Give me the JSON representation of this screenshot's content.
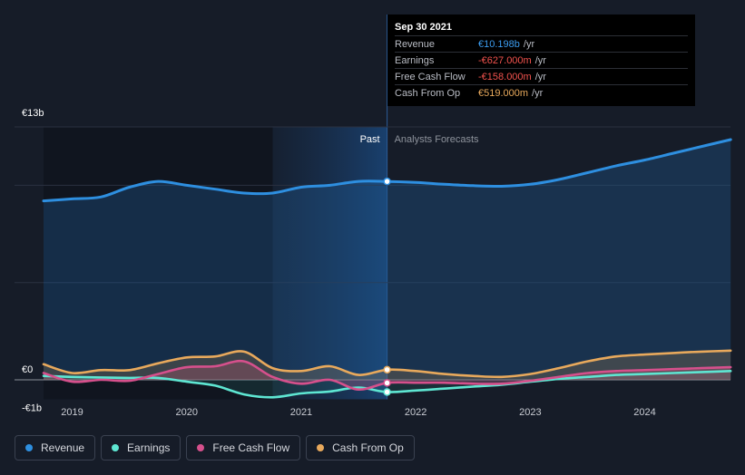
{
  "chart_data": {
    "type": "area",
    "title": "",
    "xlabel": "",
    "ylabel": "",
    "y_axis_labels": [
      "€13b",
      "€0",
      "-€1b"
    ],
    "ylim": [
      -1,
      13
    ],
    "xlim": [
      2018.75,
      2024.75
    ],
    "x_ticks": [
      2019,
      2020,
      2021,
      2022,
      2023,
      2024
    ],
    "x_tick_labels": [
      "2019",
      "2020",
      "2021",
      "2022",
      "2023",
      "2024"
    ],
    "grid": true,
    "section_labels": {
      "past": "Past",
      "forecast": "Analysts Forecasts"
    },
    "past_region_start": 2020.75,
    "divider_x": 2021.75,
    "series": [
      {
        "name": "Revenue",
        "color": "#2e8fe0",
        "x": [
          2018.75,
          2019.0,
          2019.25,
          2019.5,
          2019.75,
          2020.0,
          2020.25,
          2020.5,
          2020.75,
          2021.0,
          2021.25,
          2021.5,
          2021.75,
          2022.0,
          2022.25,
          2022.5,
          2022.75,
          2023.0,
          2023.25,
          2023.5,
          2023.75,
          2024.0,
          2024.25,
          2024.5,
          2024.75
        ],
        "y": [
          9.2,
          9.3,
          9.4,
          9.9,
          10.2,
          10.0,
          9.8,
          9.6,
          9.6,
          9.9,
          10.0,
          10.2,
          10.198,
          10.15,
          10.05,
          9.98,
          9.95,
          10.05,
          10.3,
          10.65,
          11.0,
          11.3,
          11.65,
          12.0,
          12.35
        ]
      },
      {
        "name": "Earnings",
        "color": "#5ee6d2",
        "x": [
          2018.75,
          2019.0,
          2019.25,
          2019.5,
          2019.75,
          2020.0,
          2020.25,
          2020.5,
          2020.75,
          2021.0,
          2021.25,
          2021.5,
          2021.75,
          2022.0,
          2022.25,
          2022.5,
          2022.75,
          2023.0,
          2023.25,
          2023.5,
          2023.75,
          2024.0,
          2024.25,
          2024.5,
          2024.75
        ],
        "y": [
          0.2,
          0.15,
          0.12,
          0.1,
          0.1,
          -0.1,
          -0.3,
          -0.75,
          -0.9,
          -0.7,
          -0.6,
          -0.4,
          -0.627,
          -0.55,
          -0.45,
          -0.35,
          -0.25,
          -0.1,
          0.05,
          0.15,
          0.25,
          0.3,
          0.35,
          0.4,
          0.45
        ]
      },
      {
        "name": "Free Cash Flow",
        "color": "#d6508c",
        "x": [
          2018.75,
          2019.0,
          2019.25,
          2019.5,
          2019.75,
          2020.0,
          2020.25,
          2020.5,
          2020.75,
          2021.0,
          2021.25,
          2021.5,
          2021.75,
          2022.0,
          2022.25,
          2022.5,
          2022.75,
          2023.0,
          2023.25,
          2023.5,
          2023.75,
          2024.0,
          2024.25,
          2024.5,
          2024.75
        ],
        "y": [
          0.35,
          -0.1,
          0.0,
          -0.05,
          0.3,
          0.65,
          0.7,
          0.95,
          0.15,
          -0.2,
          0.0,
          -0.5,
          -0.158,
          -0.15,
          -0.15,
          -0.2,
          -0.2,
          -0.05,
          0.15,
          0.35,
          0.45,
          0.5,
          0.55,
          0.6,
          0.65
        ]
      },
      {
        "name": "Cash From Op",
        "color": "#e8a95c",
        "x": [
          2018.75,
          2019.0,
          2019.25,
          2019.5,
          2019.75,
          2020.0,
          2020.25,
          2020.5,
          2020.75,
          2021.0,
          2021.25,
          2021.5,
          2021.75,
          2022.0,
          2022.25,
          2022.5,
          2022.75,
          2023.0,
          2023.25,
          2023.5,
          2023.75,
          2024.0,
          2024.25,
          2024.5,
          2024.75
        ],
        "y": [
          0.8,
          0.35,
          0.5,
          0.5,
          0.85,
          1.15,
          1.2,
          1.45,
          0.6,
          0.45,
          0.7,
          0.25,
          0.519,
          0.45,
          0.3,
          0.2,
          0.15,
          0.3,
          0.6,
          0.95,
          1.2,
          1.3,
          1.38,
          1.45,
          1.5
        ]
      }
    ],
    "tooltip": {
      "date": "Sep 30 2021",
      "rows": [
        {
          "label": "Revenue",
          "value": "€10.198b",
          "unit": "/yr",
          "color": "#3b9cf0"
        },
        {
          "label": "Earnings",
          "value": "-€627.000m",
          "unit": "/yr",
          "color": "#f0524d"
        },
        {
          "label": "Free Cash Flow",
          "value": "-€158.000m",
          "unit": "/yr",
          "color": "#f0524d"
        },
        {
          "label": "Cash From Op",
          "value": "€519.000m",
          "unit": "/yr",
          "color": "#e8a95c"
        }
      ]
    },
    "legend": [
      {
        "label": "Revenue",
        "color": "#2e8fe0"
      },
      {
        "label": "Earnings",
        "color": "#5ee6d2"
      },
      {
        "label": "Free Cash Flow",
        "color": "#d6508c"
      },
      {
        "label": "Cash From Op",
        "color": "#e8a95c"
      }
    ]
  }
}
